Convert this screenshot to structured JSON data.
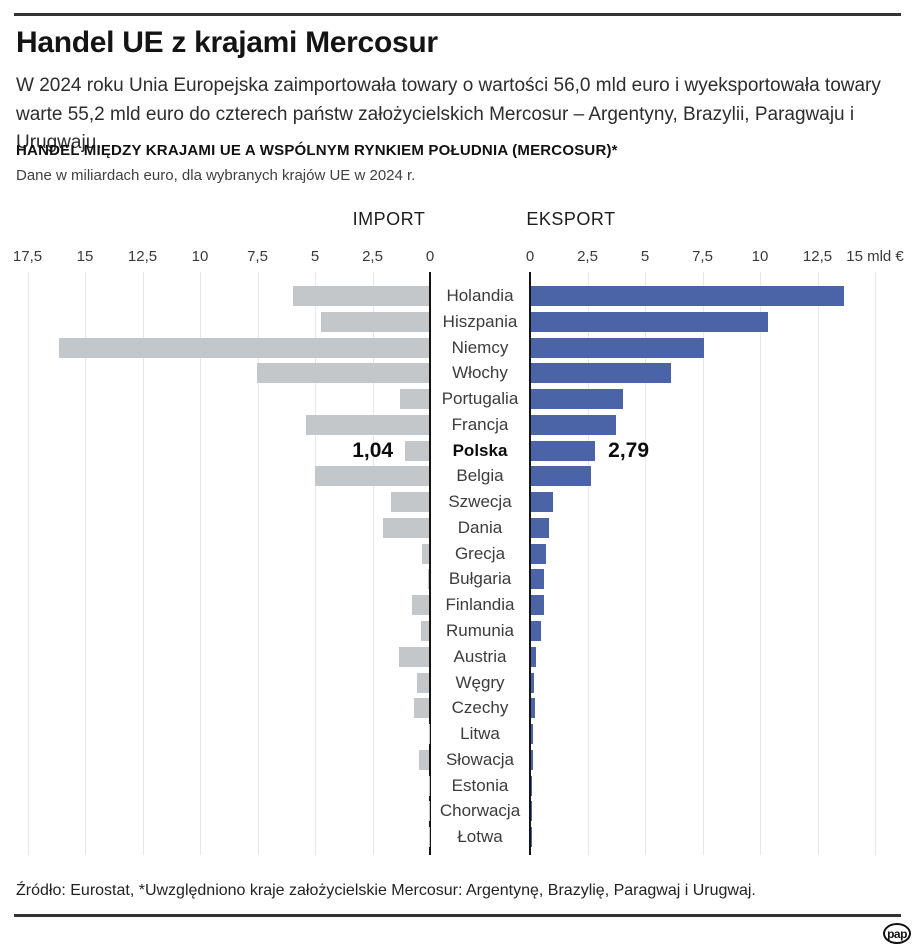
{
  "header": {
    "title": "Handel UE z krajami Mercosur",
    "intro": "W 2024 roku Unia Europejska zaimportowała towary o wartości 56,0 mld euro i wyeksportowała towary warte 55,2 mld euro do czterech państw założycielskich Mercosur – Argentyny, Brazylii, Paragwaju i Urugwaju.",
    "section_title": "HANDEL MIĘDZY KRAJAMI UE A WSPÓLNYM RYNKIEM POŁUDNIA (MERCOSUR)*",
    "section_subtitle": "Dane w miliardach euro, dla wybranych krajów UE w 2024 r."
  },
  "chart_data": {
    "type": "bar",
    "orientation": "horizontal-diverging",
    "title": "HANDEL MIĘDZY KRAJAMI UE A WSPÓLNYM RYNKIEM POŁUDNIA (MERCOSUR)*",
    "subtitle": "Dane w miliardach euro, dla wybranych krajów UE w 2024 r.",
    "unit": "mld €",
    "left_header": "IMPORT",
    "right_header": "EKSPORT",
    "left_axis_ticks": [
      "17,5",
      "15",
      "12,5",
      "10",
      "7,5",
      "5",
      "2,5",
      "0"
    ],
    "right_axis_ticks": [
      "0",
      "2,5",
      "5",
      "7,5",
      "10",
      "12,5",
      "15 mld €"
    ],
    "left_axis_max": 17.5,
    "right_axis_max": 15,
    "grid": true,
    "categories": [
      "Holandia",
      "Hiszpania",
      "Niemcy",
      "Włochy",
      "Portugalia",
      "Francja",
      "Polska",
      "Belgia",
      "Szwecja",
      "Dania",
      "Grecja",
      "Bułgaria",
      "Finlandia",
      "Rumunia",
      "Austria",
      "Węgry",
      "Czechy",
      "Litwa",
      "Słowacja",
      "Estonia",
      "Chorwacja",
      "Łotwa"
    ],
    "series": [
      {
        "name": "IMPORT",
        "color": "#c3c7c9",
        "values": [
          5.9,
          4.7,
          16.1,
          7.5,
          1.26,
          5.35,
          1.04,
          4.95,
          1.65,
          2.0,
          0.3,
          0.05,
          0.74,
          0.35,
          1.3,
          0.52,
          0.65,
          0.02,
          0.43,
          0.02,
          0.02,
          0.01
        ]
      },
      {
        "name": "EKSPORT",
        "color": "#4b64a8",
        "values": [
          13.6,
          10.3,
          7.5,
          6.1,
          4.0,
          3.7,
          2.79,
          2.6,
          0.95,
          0.78,
          0.65,
          0.55,
          0.57,
          0.45,
          0.22,
          0.15,
          0.17,
          0.08,
          0.08,
          0.03,
          0.03,
          0.03
        ]
      }
    ],
    "highlight": {
      "country": "Polska",
      "import_label": "1,04",
      "export_label": "2,79"
    }
  },
  "footer": {
    "source": "Źródło: Eurostat, *Uwzględniono kraje założycielskie Mercosur: Argentynę, Brazylię, Paragwaj i Urugwaj.",
    "logo_text": "pap"
  },
  "colors": {
    "import_bar": "#c3c7c9",
    "export_bar": "#4b64a8",
    "axis": "#141414",
    "grid": "#e8e8e8",
    "rule": "#333333"
  }
}
